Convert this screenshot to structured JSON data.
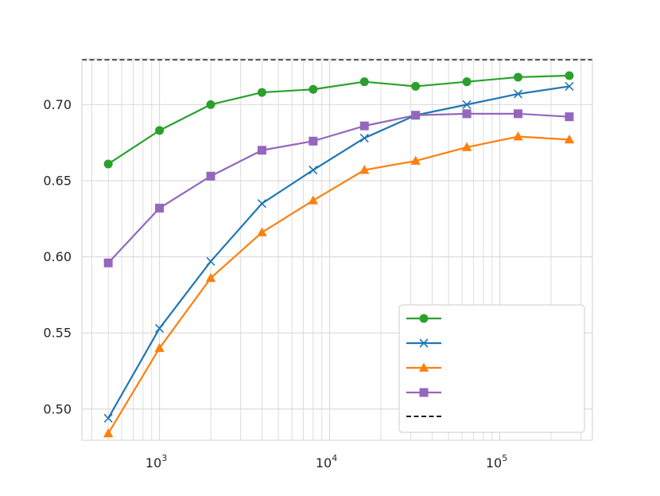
{
  "chart_data": {
    "type": "line",
    "title": "",
    "xlabel": "",
    "ylabel": "",
    "x_scale": "log",
    "xlim": [
      350,
      350000
    ],
    "ylim": [
      0.4795,
      0.73
    ],
    "grid": true,
    "minor_grid_x": true,
    "legend_position": "lower-right",
    "x_ticks": [
      {
        "base": "10",
        "exp": "3",
        "value": 1000
      },
      {
        "base": "10",
        "exp": "4",
        "value": 10000
      },
      {
        "base": "10",
        "exp": "5",
        "value": 100000
      }
    ],
    "y_ticks": [
      {
        "label": "0.50",
        "value": 0.5
      },
      {
        "label": "0.55",
        "value": 0.55
      },
      {
        "label": "0.60",
        "value": 0.6
      },
      {
        "label": "0.65",
        "value": 0.65
      },
      {
        "label": "0.70",
        "value": 0.7
      }
    ],
    "x": [
      500,
      1000,
      2000,
      4000,
      8000,
      16000,
      32000,
      64000,
      128000,
      256000
    ],
    "series": [
      {
        "color": "#2ca02c",
        "marker": "circle",
        "values": [
          0.661,
          0.683,
          0.7,
          0.708,
          0.71,
          0.715,
          0.712,
          0.715,
          0.718,
          0.719
        ]
      },
      {
        "color": "#1f77b4",
        "marker": "x",
        "values": [
          0.494,
          0.553,
          0.597,
          0.635,
          0.657,
          0.678,
          0.693,
          0.7,
          0.707,
          0.712
        ]
      },
      {
        "color": "#ff7f0e",
        "marker": "triangle",
        "values": [
          0.484,
          0.54,
          0.586,
          0.616,
          0.637,
          0.657,
          0.663,
          0.672,
          0.679,
          0.677
        ]
      },
      {
        "color": "#9467bd",
        "marker": "square",
        "values": [
          0.596,
          0.632,
          0.653,
          0.67,
          0.676,
          0.686,
          0.693,
          0.694,
          0.694,
          0.692
        ]
      }
    ],
    "reference_line": {
      "color": "#000000",
      "style": "dashed",
      "value": 0.7295
    }
  }
}
